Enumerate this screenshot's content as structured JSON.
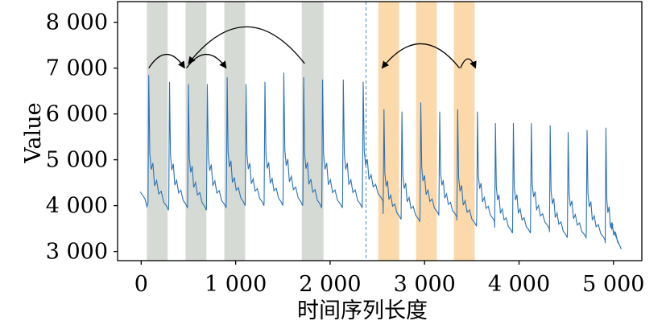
{
  "chart_data": {
    "type": "line",
    "xlabel": "时间序列长度",
    "ylabel": "Value",
    "xlim": [
      -250,
      5300
    ],
    "ylim": [
      2800,
      8450
    ],
    "xticks": [
      0,
      1000,
      2000,
      3000,
      4000,
      5000
    ],
    "xtick_labels": [
      "0",
      "1 000",
      "2 000",
      "3 000",
      "4 000",
      "5 000"
    ],
    "yticks": [
      3000,
      4000,
      5000,
      6000,
      7000,
      8000
    ],
    "ytick_labels": [
      "3 000",
      "4 000",
      "5 000",
      "6 000",
      "7 000",
      "8 000"
    ],
    "grid": false,
    "divider_x": 2380,
    "line_color": "#2a72b8",
    "shaded_regions": [
      {
        "x0": 60,
        "x1": 280,
        "color": "#d6dad5"
      },
      {
        "x0": 470,
        "x1": 690,
        "color": "#d6dad5"
      },
      {
        "x0": 880,
        "x1": 1100,
        "color": "#d6dad5"
      },
      {
        "x0": 1700,
        "x1": 1930,
        "color": "#d6dad5"
      },
      {
        "x0": 2510,
        "x1": 2730,
        "color": "#fbd9aa"
      },
      {
        "x0": 2910,
        "x1": 3130,
        "color": "#fbd9aa"
      },
      {
        "x0": 3310,
        "x1": 3530,
        "color": "#fbd9aa"
      }
    ],
    "arcs": [
      {
        "from": 80,
        "to": 460,
        "y": 7000,
        "peak": 7300
      },
      {
        "from": 480,
        "to": 900,
        "y": 7000,
        "peak": 7300
      },
      {
        "from": 1730,
        "to": 500,
        "y": 7100,
        "peak": 7900
      },
      {
        "from": 3370,
        "to": 2550,
        "y": 7000,
        "peak": 7530
      },
      {
        "from": 3380,
        "to": 3540,
        "y": 7000,
        "peak": 7200
      }
    ],
    "peaks": [
      {
        "x": 80,
        "v": 6850
      },
      {
        "x": 300,
        "v": 6700
      },
      {
        "x": 500,
        "v": 6650
      },
      {
        "x": 700,
        "v": 6650
      },
      {
        "x": 910,
        "v": 6800
      },
      {
        "x": 1110,
        "v": 6650
      },
      {
        "x": 1310,
        "v": 6700
      },
      {
        "x": 1510,
        "v": 6900
      },
      {
        "x": 1720,
        "v": 6800
      },
      {
        "x": 1920,
        "v": 6750
      },
      {
        "x": 2140,
        "v": 6750
      },
      {
        "x": 2350,
        "v": 6700
      },
      {
        "x": 2570,
        "v": 6100
      },
      {
        "x": 2760,
        "v": 6050
      },
      {
        "x": 2960,
        "v": 6250
      },
      {
        "x": 3160,
        "v": 6050
      },
      {
        "x": 3350,
        "v": 6100
      },
      {
        "x": 3560,
        "v": 6050
      },
      {
        "x": 3750,
        "v": 5800
      },
      {
        "x": 3940,
        "v": 5800
      },
      {
        "x": 4130,
        "v": 5800
      },
      {
        "x": 4330,
        "v": 5750
      },
      {
        "x": 4520,
        "v": 5600
      },
      {
        "x": 4720,
        "v": 5650
      },
      {
        "x": 4920,
        "v": 5700
      }
    ],
    "troughs": [
      3900,
      3950,
      3900,
      3950,
      4000,
      4000,
      4000,
      4000,
      3950,
      3950,
      3950,
      4100,
      3700,
      3650,
      3800,
      3750,
      3550,
      3650,
      3400,
      3400,
      3500,
      3300,
      3300,
      3250,
      3050
    ]
  }
}
